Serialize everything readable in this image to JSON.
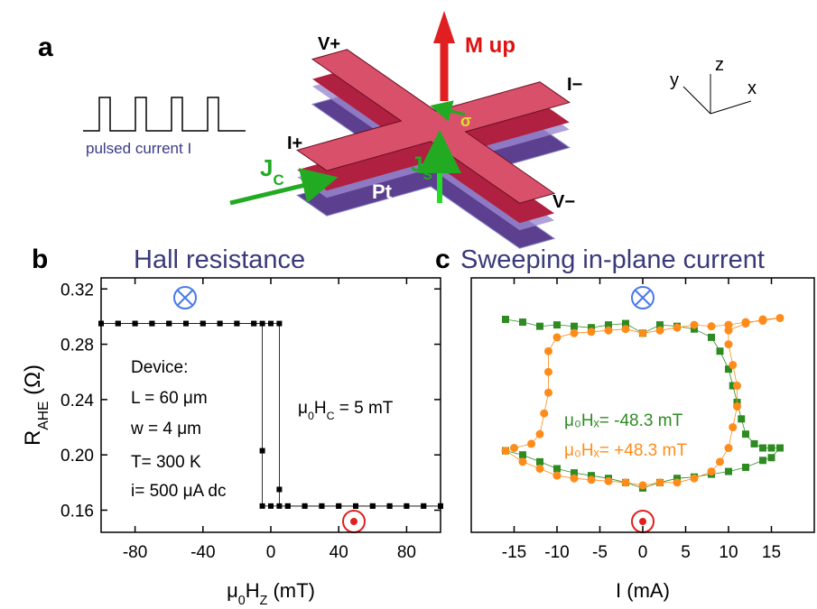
{
  "diagram": {
    "panel": "a",
    "v_plus": "V+",
    "m_up": "M up",
    "i_minus": "I−",
    "i_plus": "I+",
    "v_minus": "V−",
    "pt": "Pt",
    "j_c": [
      "J",
      "C"
    ],
    "j_s": [
      "J",
      "S"
    ],
    "sigma": "σ",
    "pulse_label": "pulsed current I",
    "axis_x": "x",
    "axis_y": "y",
    "axis_z": "z"
  },
  "chart_data": [
    {
      "type": "line",
      "panel": "b",
      "title": "Hall resistance",
      "x_label": [
        "μ",
        "0",
        "H",
        "Z",
        " (mT)"
      ],
      "y_label": [
        "R",
        "AHE",
        " (Ω)"
      ],
      "xlim": [
        -100,
        100
      ],
      "xticks": [
        -80,
        -40,
        0,
        40,
        80
      ],
      "ylim": [
        0.144,
        0.328
      ],
      "yticks": [
        0.16,
        {
          "value": 0.2,
          "label": "0.20"
        },
        0.24,
        0.28,
        0.32
      ],
      "annotations": [
        "Device:",
        "L  = 60 μm",
        "w =   4 μm",
        "T= 300 K",
        "i= 500 μA dc",
        [
          "μ",
          "0",
          "H",
          "C",
          " = 5 mT"
        ]
      ],
      "series": [
        {
          "color": "#000000",
          "marker": "square",
          "x": [
            -100,
            -90,
            -80,
            -70,
            -60,
            -50,
            -40,
            -30,
            -20,
            -10,
            0,
            5,
            5,
            5,
            10,
            20,
            30,
            40,
            50,
            60,
            70,
            80,
            90,
            100
          ],
          "values": [
            0.295,
            0.295,
            0.295,
            0.295,
            0.295,
            0.295,
            0.295,
            0.295,
            0.295,
            0.295,
            0.295,
            0.295,
            0.175,
            0.163,
            0.163,
            0.163,
            0.163,
            0.163,
            0.163,
            0.163,
            0.163,
            0.163,
            0.163,
            0.163
          ]
        },
        {
          "color": "#000000",
          "marker": "square",
          "x": [
            100,
            90,
            80,
            70,
            60,
            50,
            40,
            30,
            20,
            10,
            0,
            -5,
            -5,
            -5,
            -10,
            -20,
            -30,
            -40,
            -50,
            -60,
            -70,
            -80,
            -90,
            -100
          ],
          "values": [
            0.163,
            0.163,
            0.163,
            0.163,
            0.163,
            0.163,
            0.163,
            0.163,
            0.163,
            0.163,
            0.163,
            0.163,
            0.203,
            0.295,
            0.295,
            0.295,
            0.295,
            0.295,
            0.295,
            0.295,
            0.295,
            0.295,
            0.295,
            0.295
          ]
        }
      ]
    },
    {
      "type": "line",
      "panel": "c",
      "title": "Sweeping in-plane current",
      "x_label": [
        "I (mA)"
      ],
      "xlim": [
        -20,
        20
      ],
      "xticks": [
        -15,
        -10,
        -5,
        0,
        5,
        10,
        15
      ],
      "ylim": [
        0.144,
        0.328
      ],
      "series": [
        {
          "name": "μ₀Hₓ= -48.3 mT",
          "color": "#2e8b22",
          "marker": "square",
          "x": [
            -16,
            -14,
            -12,
            -10,
            -8,
            -6,
            -4,
            -2,
            0,
            2,
            4,
            6,
            8,
            9,
            10,
            10.5,
            11,
            11.5,
            12,
            13,
            14,
            15,
            16,
            15,
            14,
            12,
            10,
            8,
            6,
            4,
            2,
            0,
            -2,
            -4,
            -6,
            -8,
            -10,
            -12,
            -14,
            -16
          ],
          "values": [
            0.298,
            0.296,
            0.293,
            0.294,
            0.293,
            0.292,
            0.294,
            0.295,
            0.288,
            0.294,
            0.293,
            0.291,
            0.285,
            0.275,
            0.262,
            0.25,
            0.238,
            0.226,
            0.215,
            0.208,
            0.205,
            0.205,
            0.205,
            0.198,
            0.196,
            0.191,
            0.188,
            0.186,
            0.184,
            0.183,
            0.18,
            0.176,
            0.18,
            0.183,
            0.185,
            0.187,
            0.19,
            0.195,
            0.2,
            0.203
          ]
        },
        {
          "name": "μ₀Hₓ= +48.3 mT",
          "color": "#ff8c1a",
          "marker": "circle",
          "x": [
            -16,
            -14,
            -12,
            -10,
            -8,
            -6,
            -4,
            -2,
            0,
            2,
            4,
            6,
            8,
            9,
            10,
            10.5,
            11,
            11,
            10.5,
            10,
            10,
            12,
            14,
            16,
            14,
            12,
            10,
            8,
            6,
            4,
            2,
            0,
            -2,
            -4,
            -6,
            -8,
            -10,
            -11,
            -11,
            -11,
            -11.5,
            -12,
            -13,
            -15
          ],
          "values": [
            0.203,
            0.195,
            0.19,
            0.185,
            0.183,
            0.182,
            0.181,
            0.18,
            0.178,
            0.18,
            0.18,
            0.183,
            0.188,
            0.195,
            0.205,
            0.22,
            0.235,
            0.25,
            0.265,
            0.28,
            0.29,
            0.295,
            0.298,
            0.299,
            0.297,
            0.296,
            0.294,
            0.293,
            0.294,
            0.292,
            0.29,
            0.288,
            0.291,
            0.29,
            0.289,
            0.288,
            0.285,
            0.275,
            0.26,
            0.245,
            0.23,
            0.215,
            0.208,
            0.205
          ]
        }
      ]
    }
  ]
}
